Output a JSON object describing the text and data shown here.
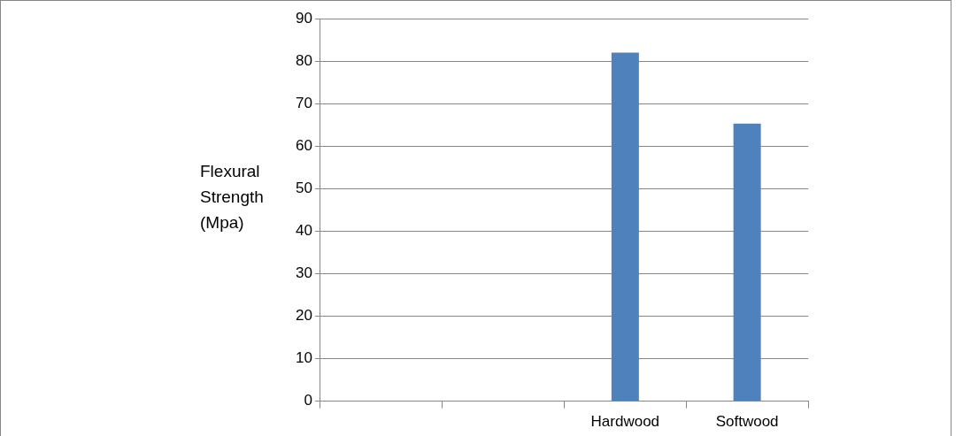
{
  "chart_data": {
    "type": "bar",
    "ylabel": "Flexural Strength (Mpa)",
    "categories": [
      null,
      null,
      "Hardwood",
      "Softwood"
    ],
    "values": [
      null,
      null,
      82,
      65.3
    ],
    "color": "#4f81bd",
    "ylim": [
      0,
      90
    ],
    "yticks": [
      0,
      10,
      20,
      30,
      40,
      50,
      60,
      70,
      80,
      90
    ],
    "grid": "y"
  }
}
